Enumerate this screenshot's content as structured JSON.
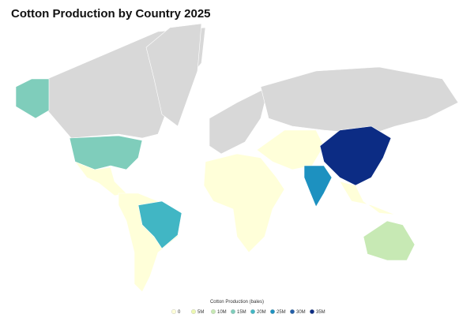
{
  "title": "Cotton Production by Country 2025",
  "legend": {
    "title": "Cotton Production (bales)",
    "ticks": [
      0,
      {
        "value": 5000000,
        "label": "5M"
      },
      {
        "value": 10000000,
        "label": "10M"
      },
      {
        "value": 15000000,
        "label": "15M"
      },
      {
        "value": 20000000,
        "label": "20M"
      },
      {
        "value": 25000000,
        "label": "25M"
      },
      {
        "value": 30000000,
        "label": "30M"
      },
      {
        "value": 35000000,
        "label": "35M"
      }
    ],
    "colors": [
      "#ffffd9",
      "#edf8b1",
      "#c7e9b4",
      "#7fcdbb",
      "#41b6c4",
      "#1d91c0",
      "#225ea8",
      "#0c2c84"
    ]
  }
}
